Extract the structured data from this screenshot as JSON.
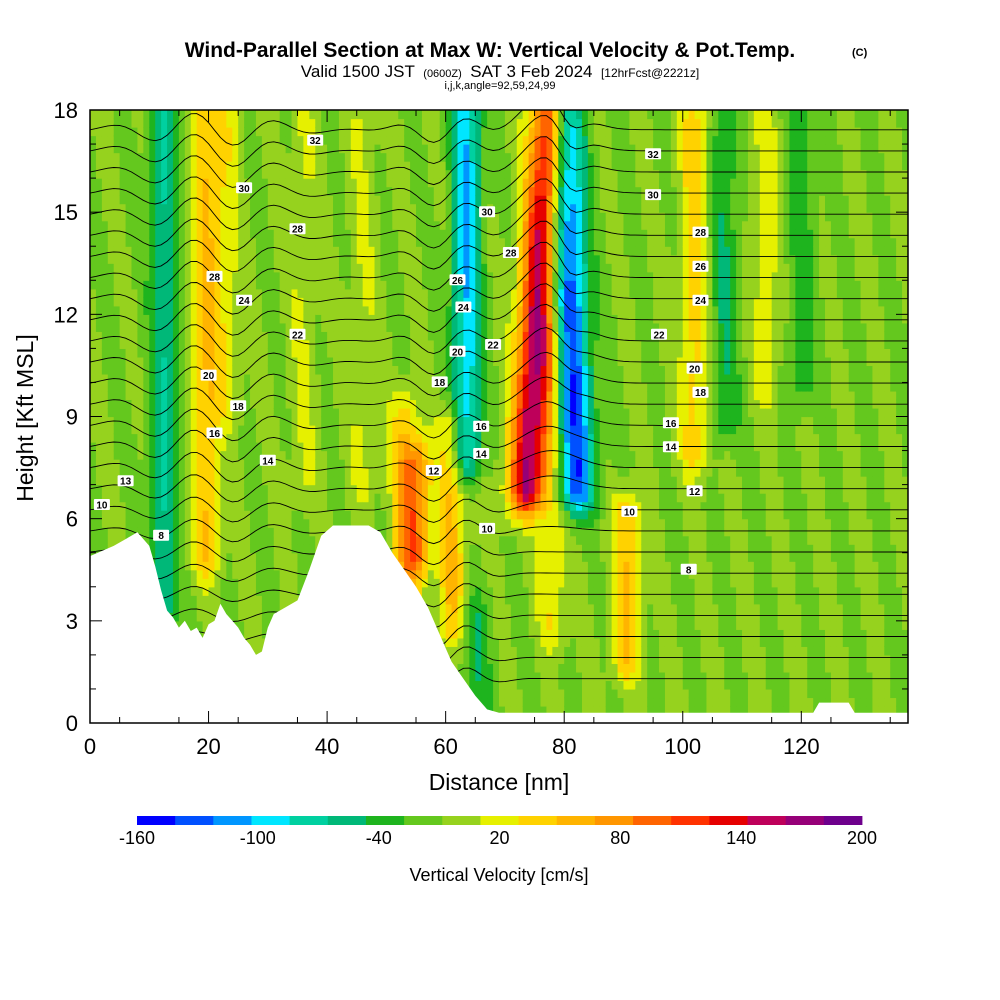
{
  "title": {
    "main": "Wind-Parallel Section at Max W: Vertical Velocity & Pot.Temp.",
    "copyright": "(C)",
    "valid_prefix": "Valid 1500 JST",
    "valid_utc": "(0600Z)",
    "valid_date": "SAT 3 Feb 2024",
    "forecast": "[12hrFcst@2221z]",
    "params": "i,j,k,angle=92,59,24,99"
  },
  "chart_data": {
    "type": "heatmap",
    "xlabel": "Distance [nm]",
    "ylabel": "Height [Kft MSL]",
    "xlim": [
      0,
      138
    ],
    "ylim": [
      0,
      18
    ],
    "x_ticks": [
      "0",
      "20",
      "40",
      "60",
      "80",
      "100",
      "120"
    ],
    "x_tick_values": [
      0,
      20,
      40,
      60,
      80,
      100,
      120
    ],
    "y_ticks": [
      "0",
      "3",
      "6",
      "9",
      "12",
      "15",
      "18"
    ],
    "y_tick_values": [
      0,
      3,
      6,
      9,
      12,
      15,
      18
    ],
    "colorbar": {
      "label": "Vertical Velocity [cm/s]",
      "range": [
        -160,
        200
      ],
      "tick_labels": [
        "-160",
        "-100",
        "-40",
        "20",
        "80",
        "140",
        "200"
      ],
      "tick_values": [
        -160,
        -100,
        -40,
        20,
        80,
        140,
        200
      ],
      "levels": [
        -160,
        -140,
        -120,
        -100,
        -80,
        -60,
        -40,
        -20,
        0,
        20,
        40,
        60,
        80,
        100,
        120,
        140,
        160,
        180,
        200
      ],
      "colors": [
        "#0000ff",
        "#0050ff",
        "#0096ff",
        "#00e6ff",
        "#00d0a0",
        "#00b878",
        "#1eb41e",
        "#64c81e",
        "#96d21e",
        "#e6f000",
        "#ffd200",
        "#ffb400",
        "#ff9600",
        "#ff6400",
        "#ff3200",
        "#e60000",
        "#be005a",
        "#960078",
        "#6e008c"
      ]
    },
    "background_w": 0,
    "w_features": [
      {
        "x": 12.5,
        "z0": 3.5,
        "z1": 18,
        "w": -60
      },
      {
        "x": 19.5,
        "z0": 5.0,
        "z1": 18,
        "w": 60
      },
      {
        "x": 23,
        "z0": 9.5,
        "z1": 18,
        "w": 30
      },
      {
        "x": 36,
        "z0": 7,
        "z1": 18,
        "w": 20
      },
      {
        "x": 46,
        "z0": 7,
        "z1": 18,
        "w": 20
      },
      {
        "x": 53,
        "z0": 3.5,
        "z1": 9,
        "w": 50
      },
      {
        "x": 55,
        "z0": 5,
        "z1": 7.5,
        "w": 90
      },
      {
        "x": 61,
        "z0": 3,
        "z1": 8.5,
        "w": 60
      },
      {
        "x": 63.5,
        "z0": 8,
        "z1": 18,
        "w": -100
      },
      {
        "x": 65,
        "z0": 0,
        "z1": 3,
        "w": -40
      },
      {
        "x": 75.5,
        "z0": 7,
        "z1": 18,
        "w": 180
      },
      {
        "x": 78,
        "z0": 3,
        "z1": 11,
        "w": 40
      },
      {
        "x": 81,
        "z0": 7,
        "z1": 18,
        "w": -140
      },
      {
        "x": 90.5,
        "z0": 2,
        "z1": 6,
        "w": 60
      },
      {
        "x": 102,
        "z0": 8,
        "z1": 18,
        "w": 50
      },
      {
        "x": 107,
        "z0": 9,
        "z1": 18,
        "w": -40
      },
      {
        "x": 114,
        "z0": 10,
        "z1": 18,
        "w": 30
      },
      {
        "x": 120,
        "z0": 10,
        "z1": 18,
        "w": -30
      }
    ],
    "terrain": [
      {
        "x": 0,
        "z": 4.9
      },
      {
        "x": 4,
        "z": 5.2
      },
      {
        "x": 8,
        "z": 5.6
      },
      {
        "x": 10,
        "z": 5.2
      },
      {
        "x": 11,
        "z": 4.6
      },
      {
        "x": 12,
        "z": 3.9
      },
      {
        "x": 13,
        "z": 3.3
      },
      {
        "x": 14,
        "z": 3.1
      },
      {
        "x": 15,
        "z": 2.8
      },
      {
        "x": 16,
        "z": 3.0
      },
      {
        "x": 17,
        "z": 2.7
      },
      {
        "x": 18,
        "z": 2.8
      },
      {
        "x": 19,
        "z": 2.5
      },
      {
        "x": 20,
        "z": 2.9
      },
      {
        "x": 21,
        "z": 3.0
      },
      {
        "x": 22,
        "z": 3.5
      },
      {
        "x": 23,
        "z": 3.2
      },
      {
        "x": 24,
        "z": 3.0
      },
      {
        "x": 25,
        "z": 2.8
      },
      {
        "x": 26,
        "z": 2.5
      },
      {
        "x": 27,
        "z": 2.3
      },
      {
        "x": 28,
        "z": 2.0
      },
      {
        "x": 29,
        "z": 2.1
      },
      {
        "x": 30,
        "z": 2.8
      },
      {
        "x": 31,
        "z": 3.2
      },
      {
        "x": 33,
        "z": 3.4
      },
      {
        "x": 35,
        "z": 3.6
      },
      {
        "x": 37,
        "z": 4.5
      },
      {
        "x": 39,
        "z": 5.5
      },
      {
        "x": 41,
        "z": 5.8
      },
      {
        "x": 47,
        "z": 5.8
      },
      {
        "x": 49,
        "z": 5.6
      },
      {
        "x": 51,
        "z": 5.0
      },
      {
        "x": 53,
        "z": 4.5
      },
      {
        "x": 55,
        "z": 4.0
      },
      {
        "x": 57,
        "z": 3.4
      },
      {
        "x": 59,
        "z": 2.6
      },
      {
        "x": 61,
        "z": 1.8
      },
      {
        "x": 63,
        "z": 1.3
      },
      {
        "x": 65,
        "z": 0.8
      },
      {
        "x": 67,
        "z": 0.4
      },
      {
        "x": 69,
        "z": 0.3
      },
      {
        "x": 71,
        "z": 0.3
      },
      {
        "x": 122,
        "z": 0.3
      },
      {
        "x": 123,
        "z": 0.6
      },
      {
        "x": 128,
        "z": 0.6
      },
      {
        "x": 129,
        "z": 0.3
      },
      {
        "x": 138,
        "z": 0.3
      }
    ],
    "theta_levels": [
      8,
      9,
      10,
      11,
      12,
      13,
      14,
      15,
      16,
      17,
      18,
      19,
      20,
      21,
      22,
      23,
      24,
      25,
      26,
      27,
      28,
      29,
      30,
      31,
      32,
      33,
      34
    ],
    "theta_labels": [
      {
        "text": "32",
        "x": 38,
        "z": 17.1
      },
      {
        "text": "30",
        "x": 26,
        "z": 15.7
      },
      {
        "text": "28",
        "x": 35,
        "z": 14.5
      },
      {
        "text": "28",
        "x": 21,
        "z": 13.1
      },
      {
        "text": "24",
        "x": 26,
        "z": 12.4
      },
      {
        "text": "22",
        "x": 35,
        "z": 11.4
      },
      {
        "text": "20",
        "x": 20,
        "z": 10.2
      },
      {
        "text": "18",
        "x": 25,
        "z": 9.3
      },
      {
        "text": "16",
        "x": 21,
        "z": 8.5
      },
      {
        "text": "14",
        "x": 30,
        "z": 7.7
      },
      {
        "text": "13",
        "x": 6,
        "z": 7.1
      },
      {
        "text": "10",
        "x": 2,
        "z": 6.4
      },
      {
        "text": "8",
        "x": 12,
        "z": 5.5
      },
      {
        "text": "30",
        "x": 67,
        "z": 15.0
      },
      {
        "text": "28",
        "x": 71,
        "z": 13.8
      },
      {
        "text": "26",
        "x": 62,
        "z": 13.0
      },
      {
        "text": "24",
        "x": 63,
        "z": 12.2
      },
      {
        "text": "22",
        "x": 68,
        "z": 11.1
      },
      {
        "text": "20",
        "x": 62,
        "z": 10.9
      },
      {
        "text": "18",
        "x": 59,
        "z": 10.0
      },
      {
        "text": "16",
        "x": 66,
        "z": 8.7
      },
      {
        "text": "14",
        "x": 66,
        "z": 7.9
      },
      {
        "text": "12",
        "x": 58,
        "z": 7.4
      },
      {
        "text": "10",
        "x": 67,
        "z": 5.7
      },
      {
        "text": "32",
        "x": 95,
        "z": 16.7
      },
      {
        "text": "30",
        "x": 95,
        "z": 15.5
      },
      {
        "text": "28",
        "x": 103,
        "z": 14.4
      },
      {
        "text": "26",
        "x": 103,
        "z": 13.4
      },
      {
        "text": "24",
        "x": 103,
        "z": 12.4
      },
      {
        "text": "22",
        "x": 96,
        "z": 11.4
      },
      {
        "text": "20",
        "x": 102,
        "z": 10.4
      },
      {
        "text": "18",
        "x": 103,
        "z": 9.7
      },
      {
        "text": "16",
        "x": 98,
        "z": 8.8
      },
      {
        "text": "14",
        "x": 98,
        "z": 8.1
      },
      {
        "text": "12",
        "x": 102,
        "z": 6.8
      },
      {
        "text": "10",
        "x": 91,
        "z": 6.2
      },
      {
        "text": "8",
        "x": 101,
        "z": 4.5
      }
    ]
  }
}
